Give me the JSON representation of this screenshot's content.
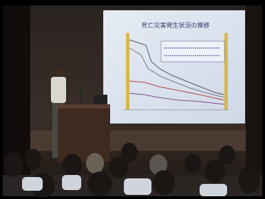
{
  "slide": {
    "title": "死亡災害発生状況の推移"
  }
}
